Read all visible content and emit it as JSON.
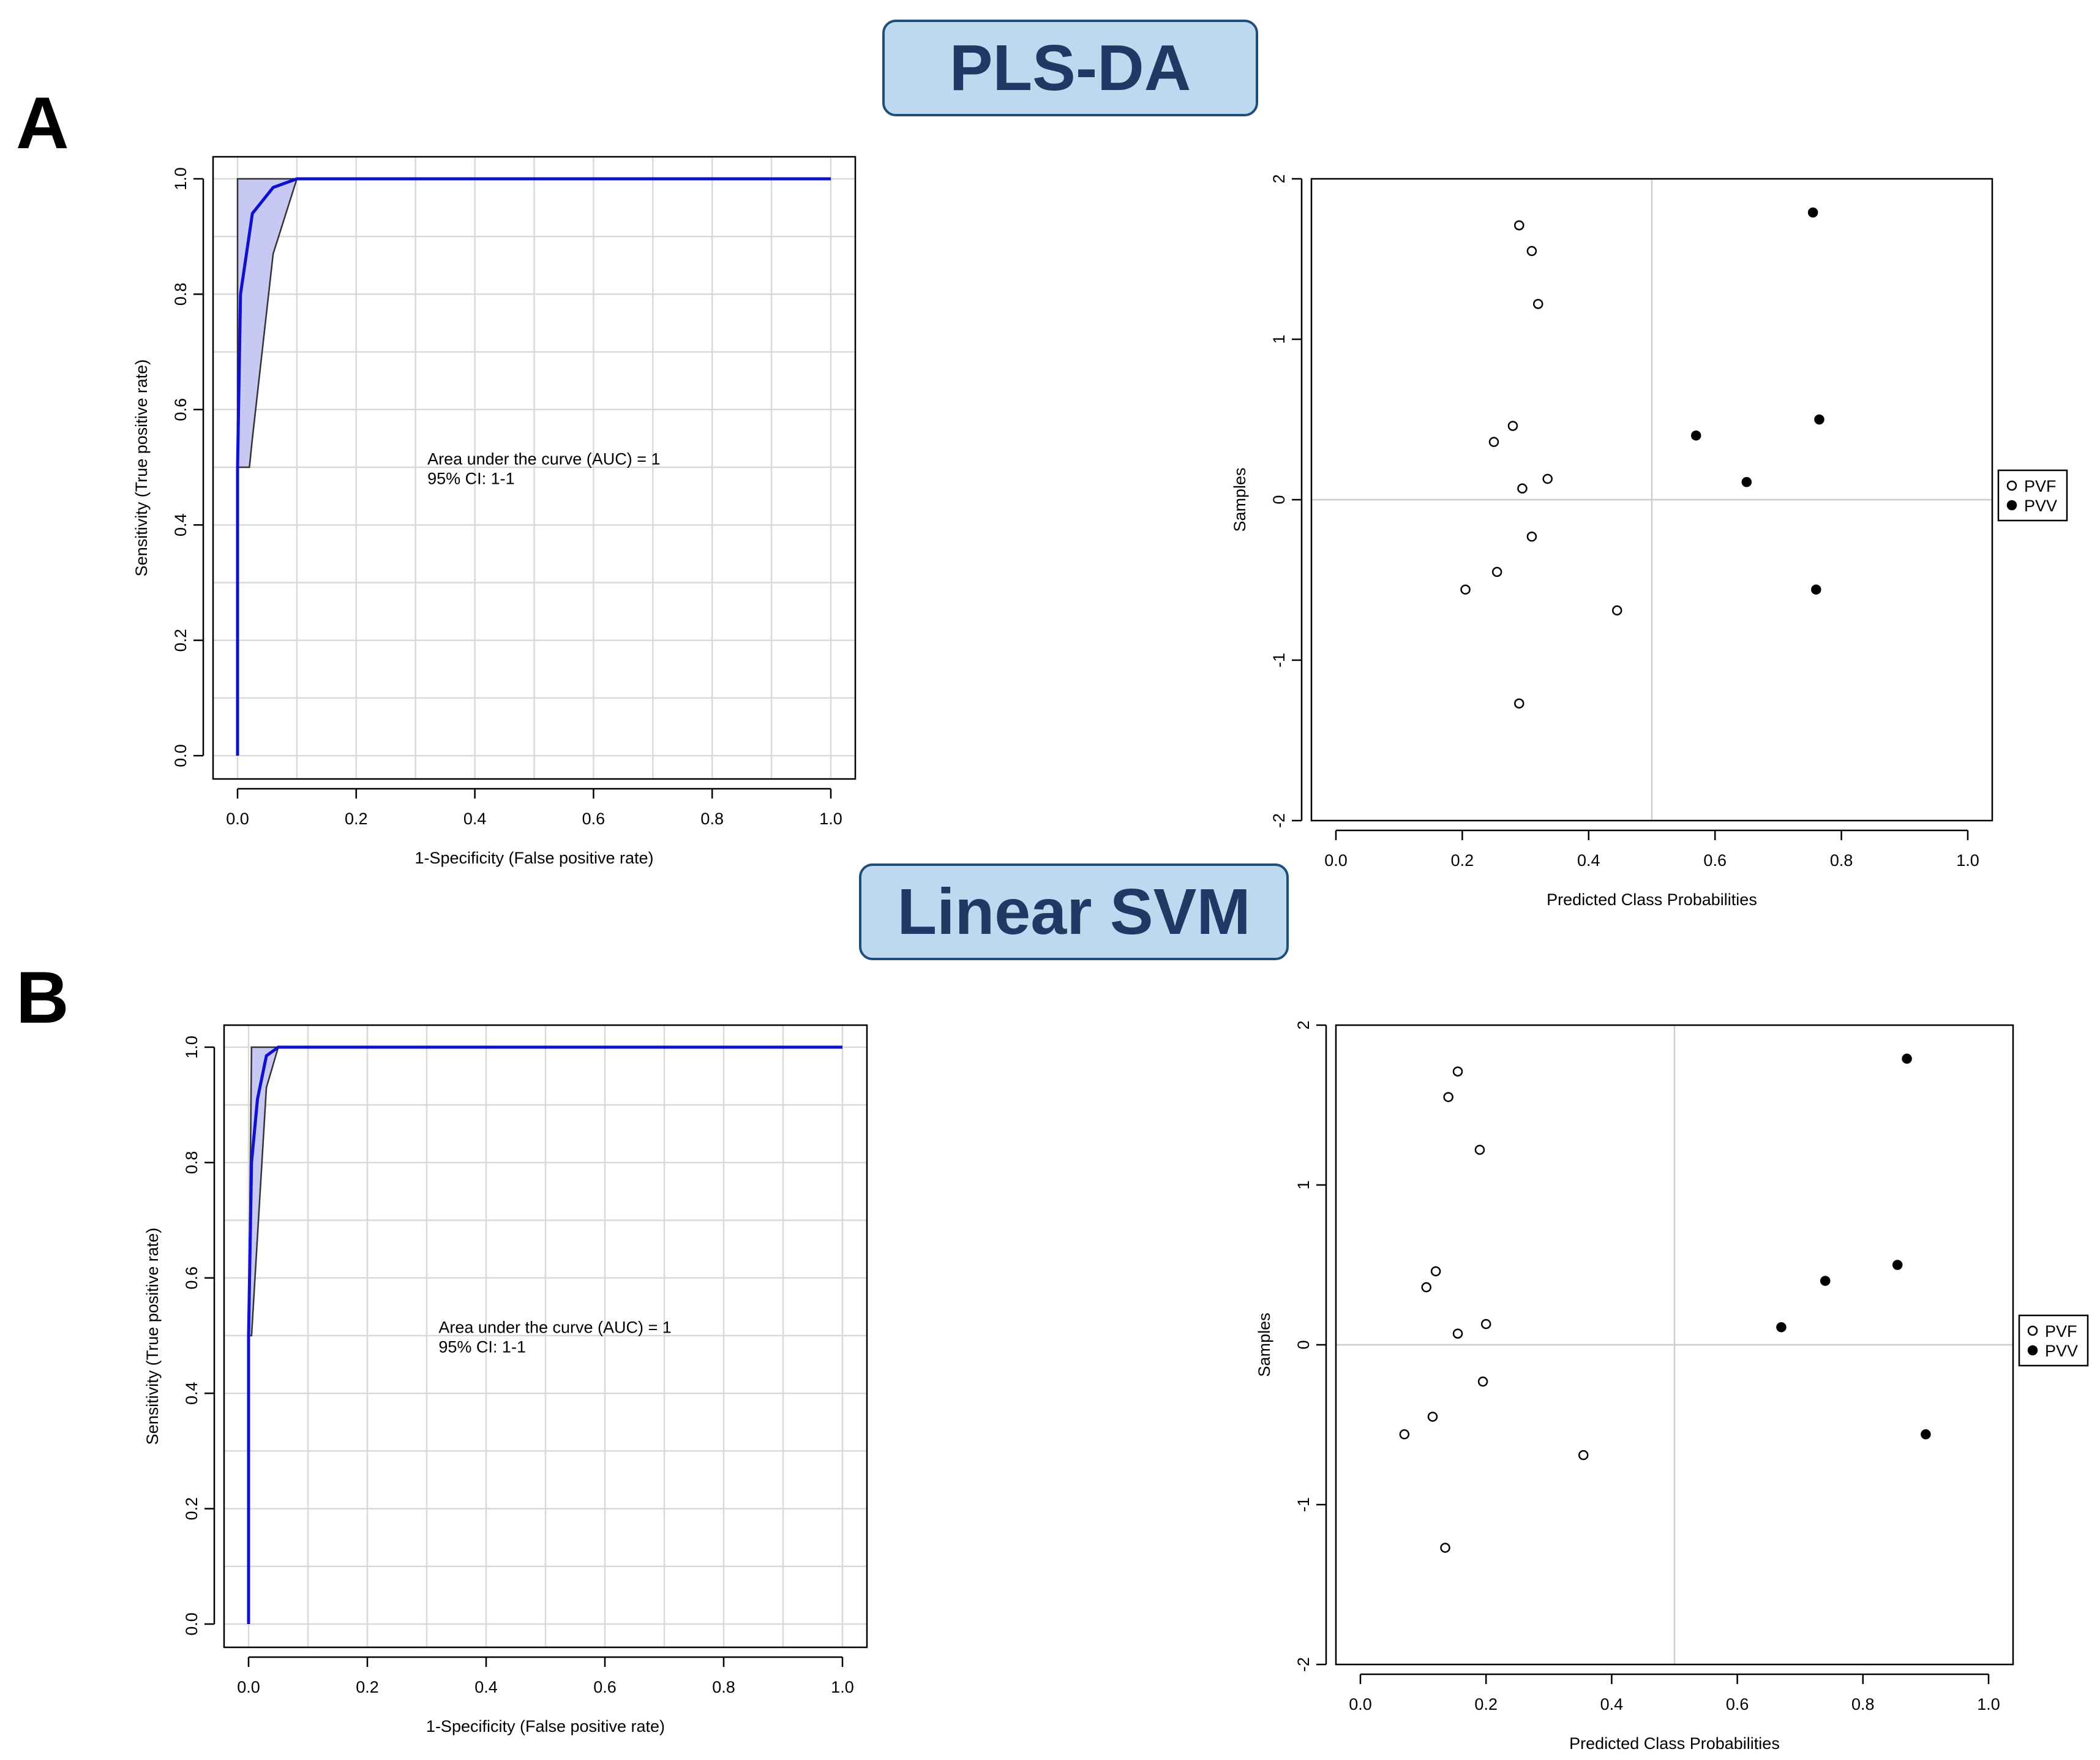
{
  "banners": {
    "top": "PLS-DA",
    "bottom": "Linear SVM"
  },
  "panels": {
    "a": "A",
    "b": "B"
  },
  "colors": {
    "roc_line": "#1010d0",
    "ci_fill": "#c8c8f5",
    "grid": "#d9d9d9",
    "banner_fill": "#bcd9f0",
    "banner_text": "#1f3864"
  },
  "chart_data": [
    {
      "type": "line",
      "id": "roc_a",
      "xlabel": "1-Specificity (False positive rate)",
      "ylabel": "Sensitivity (True positive rate)",
      "xlim": [
        0,
        1
      ],
      "ylim": [
        0,
        1
      ],
      "xticks": [
        "0.0",
        "0.2",
        "0.4",
        "0.6",
        "0.8",
        "1.0"
      ],
      "yticks": [
        "0.0",
        "0.2",
        "0.4",
        "0.6",
        "0.8",
        "1.0"
      ],
      "grid": true,
      "annotation": [
        "Area under the curve (AUC) = 1",
        " 95% CI: 1-1"
      ],
      "series": [
        {
          "name": "ROC",
          "x": [
            0,
            0,
            0.005,
            0.025,
            0.06,
            0.1,
            1.0
          ],
          "y": [
            0,
            0.5,
            0.8,
            0.94,
            0.985,
            1.0,
            1.0
          ]
        },
        {
          "name": "CI upper",
          "x": [
            0,
            0,
            1.0
          ],
          "y": [
            0,
            1.0,
            1.0
          ]
        },
        {
          "name": "CI lower",
          "x": [
            0,
            0,
            0.02,
            0.025,
            0.06,
            0.1,
            1.0
          ],
          "y": [
            0,
            0.5,
            0.5,
            0.55,
            0.87,
            1.0,
            1.0
          ]
        }
      ]
    },
    {
      "type": "scatter",
      "id": "prob_a",
      "xlabel": "Predicted Class Probabilities",
      "ylabel": "Samples",
      "xlim": [
        0,
        1
      ],
      "ylim": [
        -2,
        2
      ],
      "xticks": [
        "0.0",
        "0.2",
        "0.4",
        "0.6",
        "0.8",
        "1.0"
      ],
      "yticks": [
        "-2",
        "-1",
        "0",
        "1",
        "2"
      ],
      "reference_lines": {
        "x": 0.5,
        "y": 0
      },
      "legend": {
        "position": "right",
        "entries": [
          "PVF",
          "PVV"
        ]
      },
      "series": [
        {
          "name": "PVF",
          "x": [
            0.29,
            0.31,
            0.32,
            0.28,
            0.25,
            0.335,
            0.295,
            0.31,
            0.255,
            0.205,
            0.445,
            0.29
          ],
          "y": [
            1.71,
            1.55,
            1.22,
            0.46,
            0.36,
            0.13,
            0.07,
            -0.23,
            -0.45,
            -0.56,
            -0.69,
            -1.27
          ]
        },
        {
          "name": "PVV",
          "x": [
            0.755,
            0.765,
            0.57,
            0.65,
            0.76
          ],
          "y": [
            1.79,
            0.5,
            0.4,
            0.11,
            -0.56
          ]
        }
      ]
    },
    {
      "type": "line",
      "id": "roc_b",
      "xlabel": "1-Specificity (False positive rate)",
      "ylabel": "Sensitivity (True positive rate)",
      "xlim": [
        0,
        1
      ],
      "ylim": [
        0,
        1
      ],
      "xticks": [
        "0.0",
        "0.2",
        "0.4",
        "0.6",
        "0.8",
        "1.0"
      ],
      "yticks": [
        "0.0",
        "0.2",
        "0.4",
        "0.6",
        "0.8",
        "1.0"
      ],
      "grid": true,
      "annotation": [
        "Area under the curve (AUC) = 1",
        " 95% CI: 1-1"
      ],
      "series": [
        {
          "name": "ROC",
          "x": [
            0,
            0,
            0.005,
            0.015,
            0.03,
            0.05,
            1.0
          ],
          "y": [
            0,
            0.5,
            0.8,
            0.91,
            0.985,
            1.0,
            1.0
          ]
        },
        {
          "name": "CI upper",
          "x": [
            0,
            0,
            0.005,
            1.0
          ],
          "y": [
            0,
            0.5,
            1.0,
            1.0
          ]
        },
        {
          "name": "CI lower",
          "x": [
            0,
            0,
            0.005,
            0.03,
            0.05,
            1.0
          ],
          "y": [
            0,
            0.5,
            0.5,
            0.93,
            1.0,
            1.0
          ]
        }
      ]
    },
    {
      "type": "scatter",
      "id": "prob_b",
      "xlabel": "Predicted Class Probabilities",
      "ylabel": "Samples",
      "xlim": [
        0,
        1
      ],
      "ylim": [
        -2,
        2
      ],
      "xticks": [
        "0.0",
        "0.2",
        "0.4",
        "0.6",
        "0.8",
        "1.0"
      ],
      "yticks": [
        "-2",
        "-1",
        "0",
        "1",
        "2"
      ],
      "reference_lines": {
        "x": 0.5,
        "y": 0
      },
      "legend": {
        "position": "right",
        "entries": [
          "PVF",
          "PVV"
        ]
      },
      "series": [
        {
          "name": "PVF",
          "x": [
            0.155,
            0.14,
            0.19,
            0.12,
            0.105,
            0.2,
            0.155,
            0.195,
            0.115,
            0.07,
            0.355,
            0.135
          ],
          "y": [
            1.71,
            1.55,
            1.22,
            0.46,
            0.36,
            0.13,
            0.07,
            -0.23,
            -0.45,
            -0.56,
            -0.69,
            -1.27
          ]
        },
        {
          "name": "PVV",
          "x": [
            0.87,
            0.855,
            0.74,
            0.67,
            0.9
          ],
          "y": [
            1.79,
            0.5,
            0.4,
            0.11,
            -0.56
          ]
        }
      ]
    }
  ]
}
